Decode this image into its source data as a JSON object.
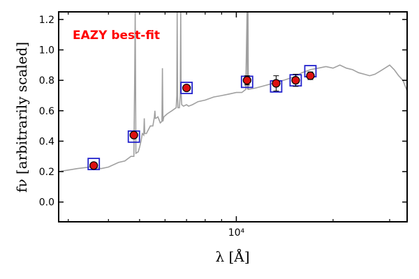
{
  "chart_data": {
    "type": "scatter",
    "title": "",
    "annotation": "EAZY best-fit",
    "xlabel": "λ [Å]",
    "ylabel": "fν [arbitrarily scaled]",
    "x_scale": "log",
    "xlim": [
      2800,
      34000
    ],
    "ylim": [
      -0.13,
      1.25
    ],
    "yticks": [
      0.0,
      0.2,
      0.4,
      0.6,
      0.8,
      1.0,
      1.2
    ],
    "ytick_labels": [
      "0.0",
      "0.2",
      "0.4",
      "0.6",
      "0.8",
      "1.0",
      "1.2"
    ],
    "xticks": [
      10000
    ],
    "xtick_labels": [
      "10⁴"
    ],
    "colors": {
      "observed_fill": "#dd1111",
      "model_box": "#2222cc",
      "template": "#a0a0a0",
      "annotation": "#ff0000"
    },
    "series": [
      {
        "type": "line",
        "role": "template",
        "x": [
          2800,
          3000,
          3200,
          3500,
          3800,
          4000,
          4300,
          4500,
          4700,
          4800,
          4830,
          4845,
          4855,
          4870,
          4950,
          5000,
          5050,
          5100,
          5150,
          5170,
          5190,
          5250,
          5400,
          5500,
          5560,
          5580,
          5600,
          5620,
          5700,
          5800,
          5870,
          5890,
          5910,
          5950,
          6100,
          6300,
          6500,
          6530,
          6545,
          6565,
          6580,
          6600,
          6650,
          6690,
          6715,
          6730,
          6760,
          6850,
          7000,
          7100,
          7300,
          7600,
          8000,
          8500,
          9000,
          9500,
          10000,
          10400,
          10700,
          10800,
          10830,
          10870,
          10900,
          11500,
          12000,
          13000,
          14000,
          15000,
          16000,
          17000,
          18000,
          19000,
          20000,
          21000,
          22000,
          23000,
          24000,
          25000,
          26000,
          27000,
          28000,
          29000,
          30000,
          31000,
          32000,
          33000,
          34000
        ],
        "y": [
          0.2,
          0.21,
          0.22,
          0.23,
          0.22,
          0.23,
          0.26,
          0.27,
          0.3,
          0.3,
          0.88,
          1.25,
          0.9,
          0.32,
          0.33,
          0.36,
          0.4,
          0.45,
          0.44,
          0.55,
          0.45,
          0.45,
          0.5,
          0.5,
          0.56,
          0.6,
          0.55,
          0.55,
          0.56,
          0.52,
          0.53,
          0.88,
          0.53,
          0.56,
          0.58,
          0.6,
          0.62,
          0.7,
          1.25,
          0.7,
          0.62,
          0.62,
          0.62,
          0.7,
          1.25,
          0.72,
          0.64,
          0.63,
          0.64,
          0.63,
          0.64,
          0.66,
          0.67,
          0.69,
          0.7,
          0.71,
          0.72,
          0.72,
          0.74,
          1.25,
          0.74,
          1.25,
          0.74,
          0.75,
          0.76,
          0.78,
          0.8,
          0.82,
          0.85,
          0.87,
          0.88,
          0.89,
          0.88,
          0.9,
          0.88,
          0.87,
          0.85,
          0.84,
          0.83,
          0.84,
          0.86,
          0.88,
          0.9,
          0.87,
          0.83,
          0.8,
          0.73
        ]
      },
      {
        "type": "points",
        "role": "observed",
        "x": [
          3600,
          4800,
          7000,
          10800,
          13300,
          15300,
          17000
        ],
        "y": [
          0.24,
          0.44,
          0.75,
          0.8,
          0.78,
          0.8,
          0.83
        ],
        "yerr": [
          0.01,
          0.01,
          0.015,
          0.03,
          0.05,
          0.04,
          0.025
        ]
      },
      {
        "type": "points",
        "role": "model",
        "x": [
          3600,
          4800,
          7000,
          10800,
          13300,
          15300,
          17000
        ],
        "y": [
          0.25,
          0.43,
          0.75,
          0.79,
          0.76,
          0.8,
          0.86
        ]
      }
    ]
  }
}
